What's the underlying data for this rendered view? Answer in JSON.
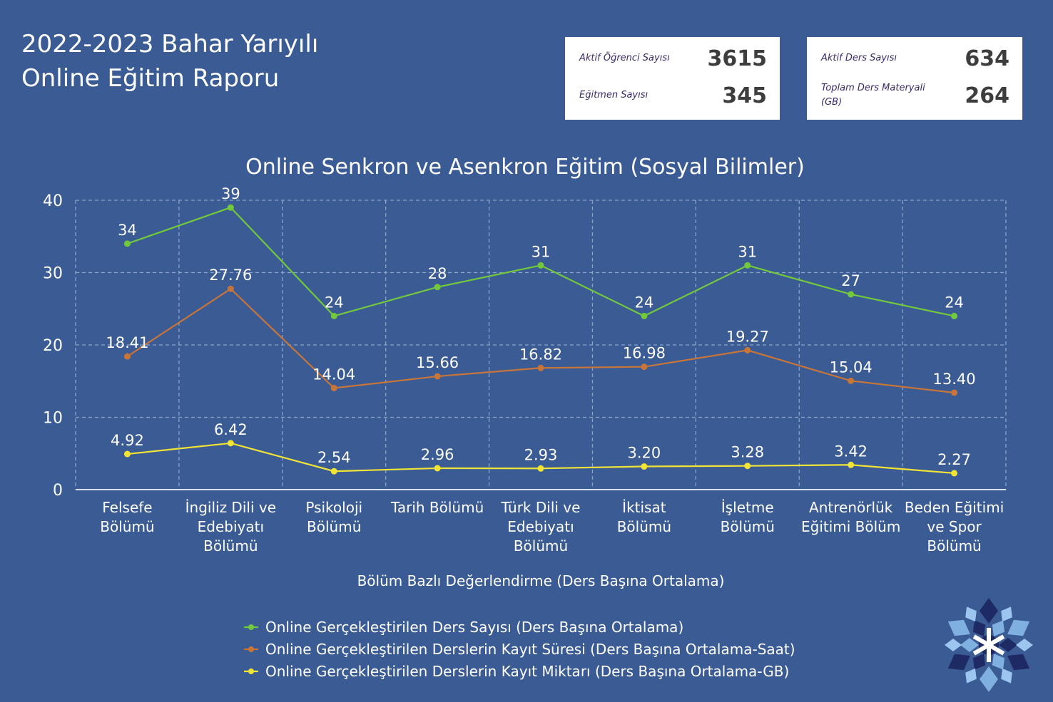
{
  "report": {
    "title_line1": "2022-2023 Bahar Yarıyılı",
    "title_line2": "Online Eğitim Raporu"
  },
  "stats": [
    {
      "label": "Aktif Öğrenci Sayısı",
      "value": "3615"
    },
    {
      "label": "Eğitmen Sayısı",
      "value": "345"
    },
    {
      "label": "Aktif Ders Sayısı",
      "value": "634"
    },
    {
      "label": "Toplam Ders Materyali (GB)",
      "value": "264"
    }
  ],
  "colors": {
    "background": "#3a5b94",
    "green": "#72c93c",
    "orange": "#c8753a",
    "yellow": "#f2e434",
    "grid": "#8aa3c8"
  },
  "logo": {
    "icon": "snowflake-icon"
  },
  "chart_data": {
    "type": "line",
    "title": "Online Senkron ve Asenkron Eğitim (Sosyal Bilimler)",
    "xlabel": "Bölüm Bazlı Değerlendirme (Ders Başına Ortalama)",
    "ylabel": "",
    "ylim": [
      0,
      40
    ],
    "yticks": [
      "0",
      "10",
      "20",
      "30",
      "40"
    ],
    "grid": true,
    "legend_position": "bottom",
    "categories": [
      [
        "Felsefe",
        "Bölümü"
      ],
      [
        "İngiliz Dili ve",
        "Edebiyatı",
        "Bölümü"
      ],
      [
        "Psikoloji",
        "Bölümü"
      ],
      [
        "Tarih Bölümü"
      ],
      [
        "Türk Dili ve",
        "Edebiyatı",
        "Bölümü"
      ],
      [
        "İktisat",
        "Bölümü"
      ],
      [
        "İşletme",
        "Bölümü"
      ],
      [
        "Antrenörlük",
        "Eğitimi Bölüm"
      ],
      [
        "Beden Eğitimi",
        "ve Spor",
        "Bölümü"
      ]
    ],
    "series": [
      {
        "name": "Online Gerçekleştirilen Ders Sayısı (Ders Başına Ortalama)",
        "color": "#72c93c",
        "values": [
          34,
          39,
          24,
          28,
          31,
          24,
          31,
          27,
          24
        ],
        "labels": [
          "34",
          "39",
          "24",
          "28",
          "31",
          "24",
          "31",
          "27",
          "24"
        ]
      },
      {
        "name": "Online Gerçekleştirilen Derslerin Kayıt Süresi (Ders Başına Ortalama-Saat)",
        "color": "#c8753a",
        "values": [
          18.41,
          27.76,
          14.04,
          15.66,
          16.82,
          16.98,
          19.27,
          15.04,
          13.4
        ],
        "labels": [
          "18.41",
          "27.76",
          "14.04",
          "15.66",
          "16.82",
          "16.98",
          "19.27",
          "15.04",
          "13.40"
        ]
      },
      {
        "name": "Online Gerçekleştirilen Derslerin Kayıt Miktarı (Ders Başına Ortalama-GB)",
        "color": "#f2e434",
        "values": [
          4.92,
          6.42,
          2.54,
          2.96,
          2.93,
          3.2,
          3.28,
          3.42,
          2.27
        ],
        "labels": [
          "4.92",
          "6.42",
          "2.54",
          "2.96",
          "2.93",
          "3.20",
          "3.28",
          "3.42",
          "2.27"
        ]
      }
    ]
  }
}
